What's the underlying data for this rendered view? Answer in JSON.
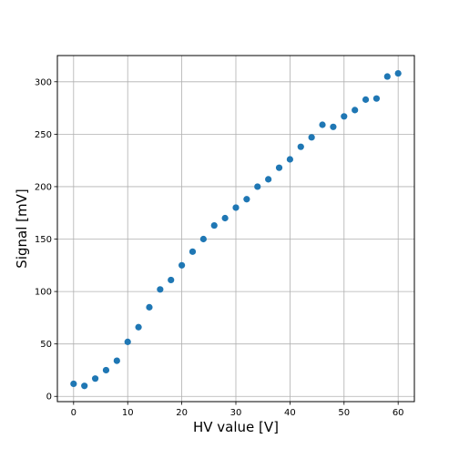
{
  "chart_data": {
    "type": "scatter",
    "title": "",
    "xlabel": "HV value [V]",
    "ylabel": "Signal [mV]",
    "xlim": [
      -3,
      63
    ],
    "ylim": [
      -5,
      325
    ],
    "x_ticks": [
      0,
      10,
      20,
      30,
      40,
      50,
      60
    ],
    "y_ticks": [
      0,
      50,
      100,
      150,
      200,
      250,
      300
    ],
    "grid": true,
    "marker_color": "#1f77b4",
    "series": [
      {
        "x": [
          0,
          2,
          4,
          6,
          8,
          10,
          12,
          14,
          16,
          18,
          20,
          22,
          24,
          26,
          28,
          30,
          32,
          34,
          36,
          38,
          40,
          42,
          44,
          46,
          48,
          50,
          52,
          54,
          56,
          58,
          60
        ],
        "y": [
          12,
          10,
          17,
          25,
          34,
          52,
          66,
          85,
          102,
          111,
          125,
          138,
          150,
          163,
          170,
          180,
          188,
          200,
          207,
          218,
          226,
          238,
          247,
          259,
          257,
          267,
          273,
          283,
          284,
          305,
          308
        ]
      }
    ]
  }
}
